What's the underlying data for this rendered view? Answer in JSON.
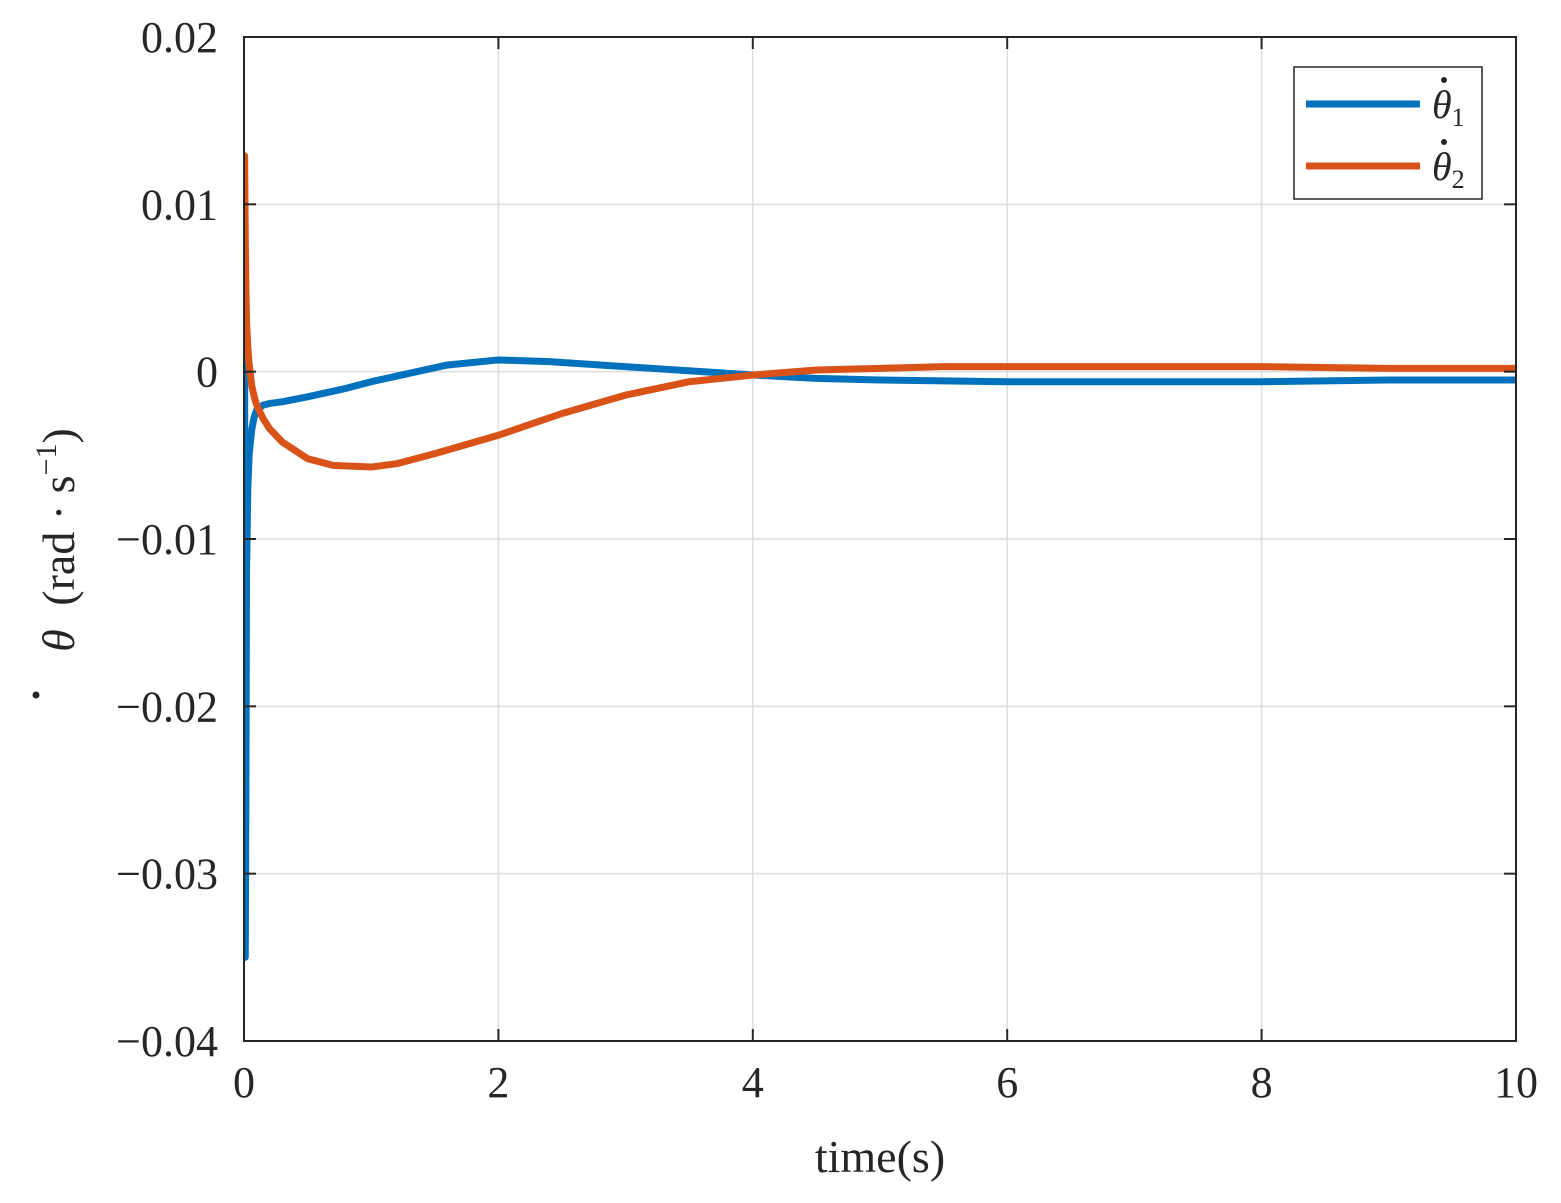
{
  "chart_data": {
    "type": "line",
    "xlabel": "time(s)",
    "ylabel": {
      "symbol": "θ",
      "unit_open": "(rad · s",
      "unit_exp": "−1",
      "unit_close": ")"
    },
    "xlim": [
      0,
      10
    ],
    "ylim": [
      -0.04,
      0.02
    ],
    "x_ticks": [
      0,
      2,
      4,
      6,
      8,
      10
    ],
    "x_tick_labels": [
      "0",
      "2",
      "4",
      "6",
      "8",
      "10"
    ],
    "y_ticks": [
      -0.04,
      -0.03,
      -0.02,
      -0.01,
      0,
      0.01,
      0.02
    ],
    "y_tick_labels": [
      "−0.04",
      "−0.03",
      "−0.02",
      "−0.01",
      "0",
      "0.01",
      "0.02"
    ],
    "grid": true,
    "legend_position": "top-right",
    "series": [
      {
        "name": "θ̇1",
        "legend": {
          "base": "θ",
          "sub": "1"
        },
        "color": "#0072BD",
        "x": [
          0,
          0.005,
          0.01,
          0.015,
          0.02,
          0.03,
          0.04,
          0.06,
          0.08,
          0.1,
          0.15,
          0.2,
          0.3,
          0.5,
          0.8,
          1.0,
          1.3,
          1.6,
          2.0,
          2.4,
          2.8,
          3.2,
          3.6,
          4.0,
          4.5,
          5.0,
          6.0,
          7.0,
          8.0,
          9.0,
          10.0
        ],
        "y": [
          0.0018,
          0.001,
          -0.035,
          -0.025,
          -0.012,
          -0.007,
          -0.005,
          -0.0035,
          -0.0027,
          -0.0023,
          -0.002,
          -0.0019,
          -0.0018,
          -0.0015,
          -0.001,
          -0.0006,
          -0.0001,
          0.0004,
          0.0007,
          0.0006,
          0.0004,
          0.0002,
          0.0,
          -0.0002,
          -0.0004,
          -0.0005,
          -0.0006,
          -0.0006,
          -0.0006,
          -0.0005,
          -0.0005
        ]
      },
      {
        "name": "θ̇2",
        "legend": {
          "base": "θ",
          "sub": "2"
        },
        "color": "#D95319",
        "x": [
          0,
          0.005,
          0.01,
          0.015,
          0.02,
          0.03,
          0.04,
          0.06,
          0.08,
          0.1,
          0.15,
          0.2,
          0.3,
          0.5,
          0.7,
          1.0,
          1.2,
          1.5,
          2.0,
          2.5,
          3.0,
          3.5,
          4.0,
          4.5,
          5.0,
          5.5,
          6.0,
          7.0,
          8.0,
          9.0,
          10.0
        ],
        "y": [
          0.002,
          0.0129,
          0.008,
          0.005,
          0.003,
          0.0015,
          0.0005,
          -0.0008,
          -0.0015,
          -0.002,
          -0.0028,
          -0.0034,
          -0.0042,
          -0.0052,
          -0.0056,
          -0.0057,
          -0.0055,
          -0.0049,
          -0.0038,
          -0.0025,
          -0.0014,
          -0.0006,
          -0.0002,
          0.0001,
          0.0002,
          0.0003,
          0.0003,
          0.0003,
          0.0003,
          0.0002,
          0.0002
        ]
      }
    ]
  }
}
